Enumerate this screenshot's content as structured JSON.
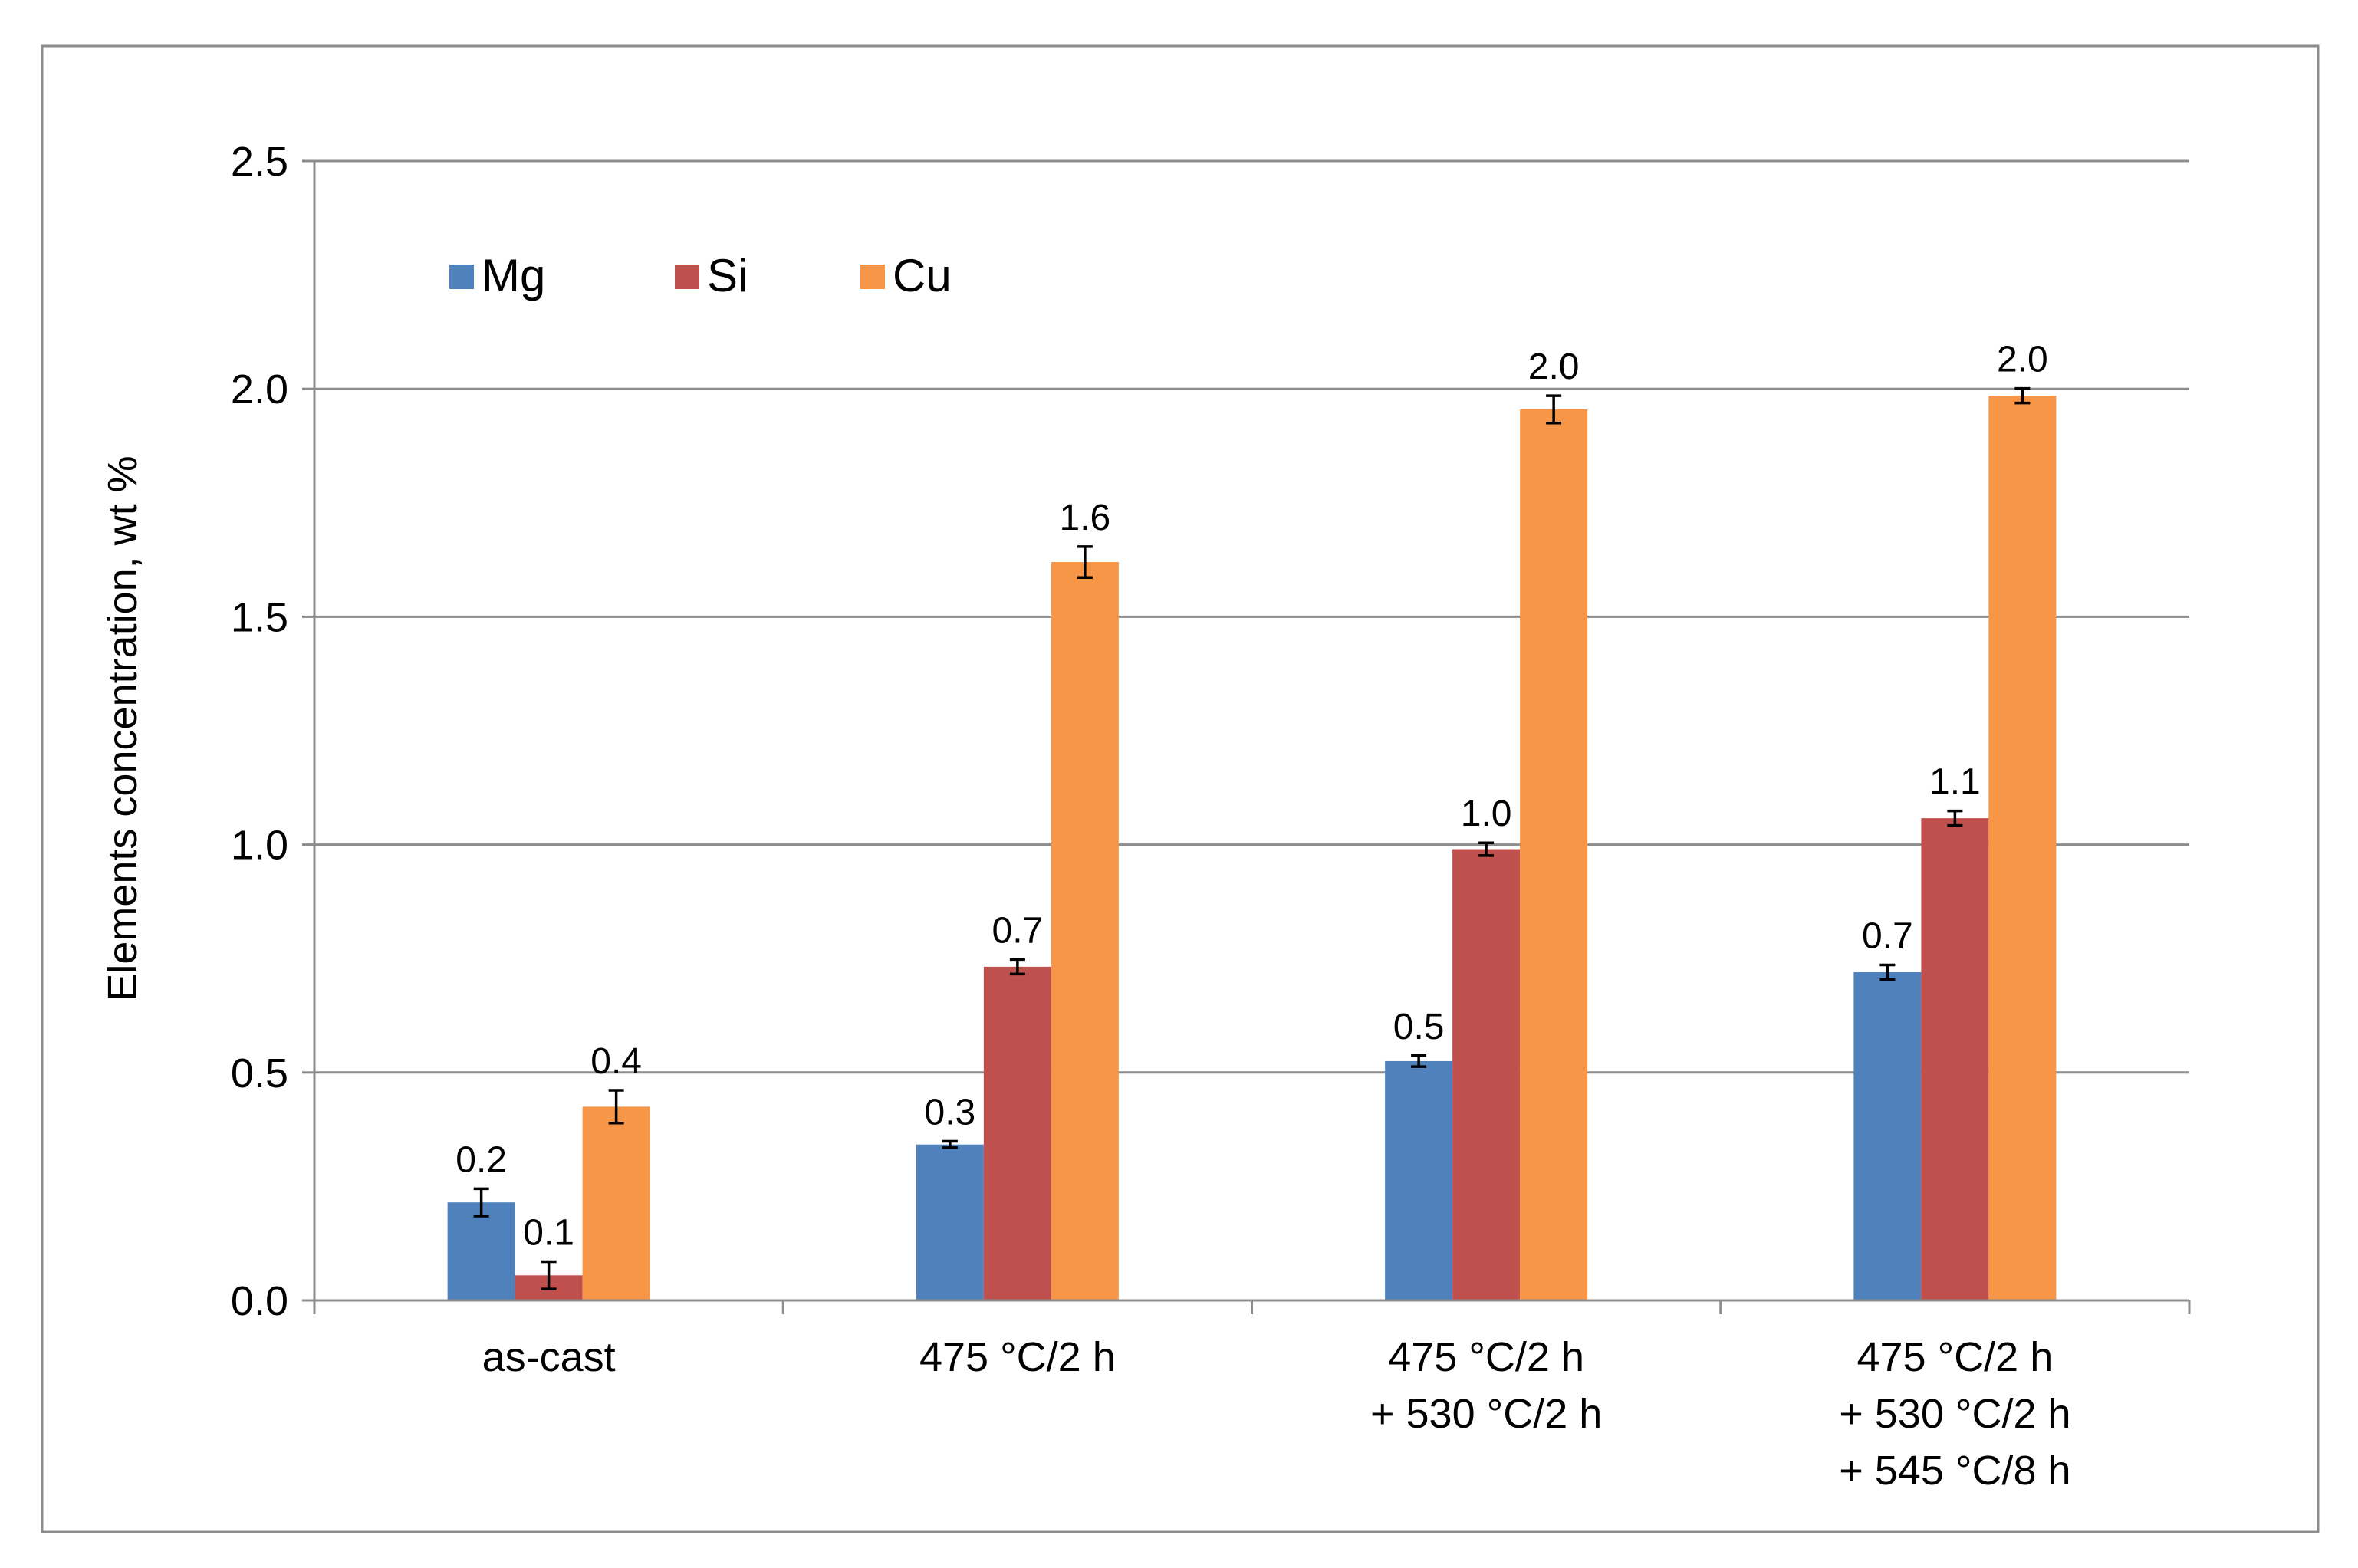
{
  "chart_data": {
    "type": "bar",
    "title": "",
    "xlabel": "",
    "ylabel": "Elements concentration, wt %",
    "ylim": [
      0,
      2.5
    ],
    "yticks": [
      "0.0",
      "0.5",
      "1.0",
      "1.5",
      "2.0",
      "2.5"
    ],
    "grid": true,
    "legend_position": "top-left",
    "categories": [
      [
        "as-cast"
      ],
      [
        "475 °C/2 h"
      ],
      [
        "475 °C/2 h",
        "+ 530 °C/2 h"
      ],
      [
        "475 °C/2 h",
        "+ 530 °C/2 h",
        "+ 545 °C/8 h"
      ]
    ],
    "series": [
      {
        "name": "Mg",
        "color": "#4F81BD",
        "values": [
          0.215,
          0.342,
          0.525,
          0.72
        ],
        "errors": [
          0.03,
          0.007,
          0.012,
          0.016
        ],
        "labels": [
          "0.2",
          "0.3",
          "0.5",
          "0.7"
        ]
      },
      {
        "name": "Si",
        "color": "#C0504D",
        "values": [
          0.055,
          0.732,
          0.99,
          1.058
        ],
        "errors": [
          0.03,
          0.016,
          0.014,
          0.016
        ],
        "labels": [
          "0.1",
          "0.7",
          "1.0",
          "1.1"
        ]
      },
      {
        "name": "Cu",
        "color": "#F79646",
        "values": [
          0.425,
          1.62,
          1.955,
          1.985
        ],
        "errors": [
          0.036,
          0.034,
          0.03,
          0.016
        ],
        "labels": [
          "0.4",
          "1.6",
          "2.0",
          "2.0"
        ]
      }
    ]
  }
}
